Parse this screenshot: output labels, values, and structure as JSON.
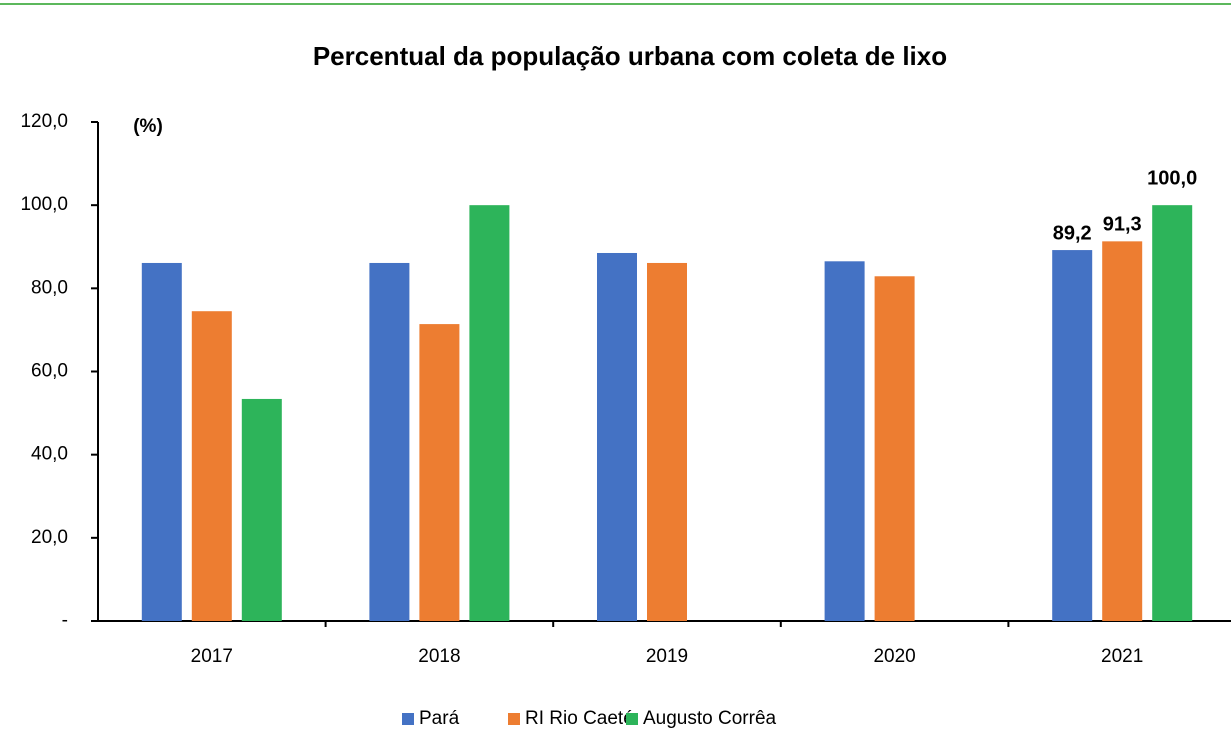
{
  "chart_data": {
    "type": "bar",
    "title": "Percentual da população urbana com coleta de lixo",
    "y_unit_label": "(%)",
    "categories": [
      "2017",
      "2018",
      "2019",
      "2020",
      "2021"
    ],
    "series": [
      {
        "name": "Pará",
        "color": "#4472c4",
        "values": [
          86.1,
          86.1,
          88.5,
          86.5,
          89.2
        ],
        "value_labels": [
          null,
          null,
          null,
          null,
          "89,2"
        ]
      },
      {
        "name": "RI Rio Caeté",
        "color": "#ed7d31",
        "values": [
          74.5,
          71.4,
          86.1,
          82.9,
          91.3
        ],
        "value_labels": [
          null,
          null,
          null,
          null,
          "91,3"
        ]
      },
      {
        "name": "Augusto Corrêa",
        "color": "#2db45a",
        "values": [
          53.4,
          100,
          null,
          null,
          100.0
        ],
        "value_labels": [
          null,
          null,
          null,
          null,
          "100,0"
        ]
      }
    ],
    "ylim": [
      0,
      120
    ],
    "yticks": [
      {
        "value": 0,
        "label": "-"
      },
      {
        "value": 20,
        "label": "20,0"
      },
      {
        "value": 40,
        "label": "40,0"
      },
      {
        "value": 60,
        "label": "60,0"
      },
      {
        "value": 80,
        "label": "80,0"
      },
      {
        "value": 100,
        "label": "100,0"
      },
      {
        "value": 120,
        "label": "120,0"
      }
    ],
    "legend": "bottom"
  }
}
